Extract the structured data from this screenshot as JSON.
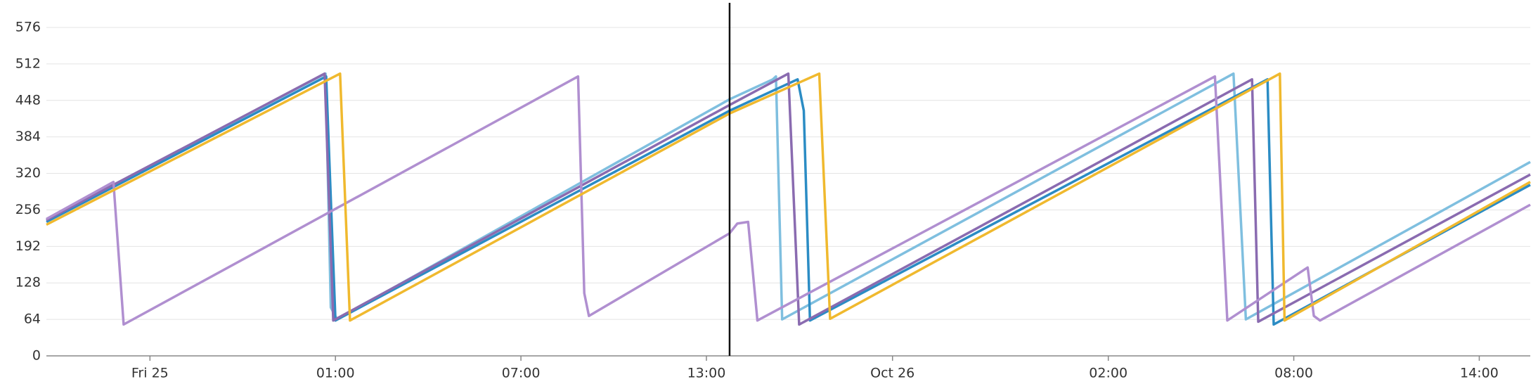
{
  "chart_data": {
    "type": "line",
    "xlim": [
      0,
      48
    ],
    "xticks": [
      {
        "value": 3.35,
        "label": "Fri 25"
      },
      {
        "value": 9.35,
        "label": "01:00"
      },
      {
        "value": 15.35,
        "label": "07:00"
      },
      {
        "value": 21.35,
        "label": "13:00"
      },
      {
        "value": 27.37,
        "label": "Oct 26"
      },
      {
        "value": 34.35,
        "label": "02:00"
      },
      {
        "value": 40.35,
        "label": "08:00"
      },
      {
        "value": 46.35,
        "label": "14:00"
      }
    ],
    "ylim": [
      0,
      576
    ],
    "yticks": [
      0,
      64,
      128,
      192,
      256,
      320,
      384,
      448,
      512,
      576
    ],
    "grid": true,
    "cursor_x": 22.1,
    "series": [
      {
        "color": "#7fbfdf",
        "x": [
          0,
          9.03,
          9.2,
          9.4,
          22.1,
          23.5,
          23.6,
          23.8,
          38.4,
          38.8,
          48
        ],
        "values": [
          238,
          495,
          85,
          64,
          450,
          485,
          490,
          64,
          495,
          64,
          340
        ]
      },
      {
        "color": "#2b8cc4",
        "x": [
          0,
          9.05,
          9.35,
          22.1,
          24.3,
          24.5,
          24.7,
          39.5,
          39.7,
          48
        ],
        "values": [
          235,
          490,
          62,
          430,
          485,
          430,
          62,
          485,
          55,
          300
        ]
      },
      {
        "color": "#8a6bb0",
        "x": [
          0,
          9.0,
          9.28,
          22.1,
          24.0,
          24.35,
          39.0,
          39.2,
          48
        ],
        "values": [
          238,
          495,
          62,
          440,
          495,
          55,
          485,
          60,
          318
        ]
      },
      {
        "color": "#b08fd0",
        "x": [
          0,
          2.17,
          2.5,
          17.2,
          17.4,
          17.55,
          22.1,
          22.35,
          22.7,
          23.0,
          37.8,
          38.2,
          40.8,
          41.0,
          41.2,
          48
        ],
        "values": [
          240,
          305,
          55,
          490,
          110,
          70,
          215,
          232,
          235,
          62,
          490,
          62,
          155,
          70,
          62,
          265
        ]
      },
      {
        "color": "#f0b92e",
        "x": [
          0,
          9.5,
          9.82,
          22.1,
          25.0,
          25.35,
          39.9,
          40.05,
          48
        ],
        "values": [
          230,
          495,
          62,
          425,
          495,
          65,
          495,
          62,
          305
        ]
      }
    ]
  }
}
